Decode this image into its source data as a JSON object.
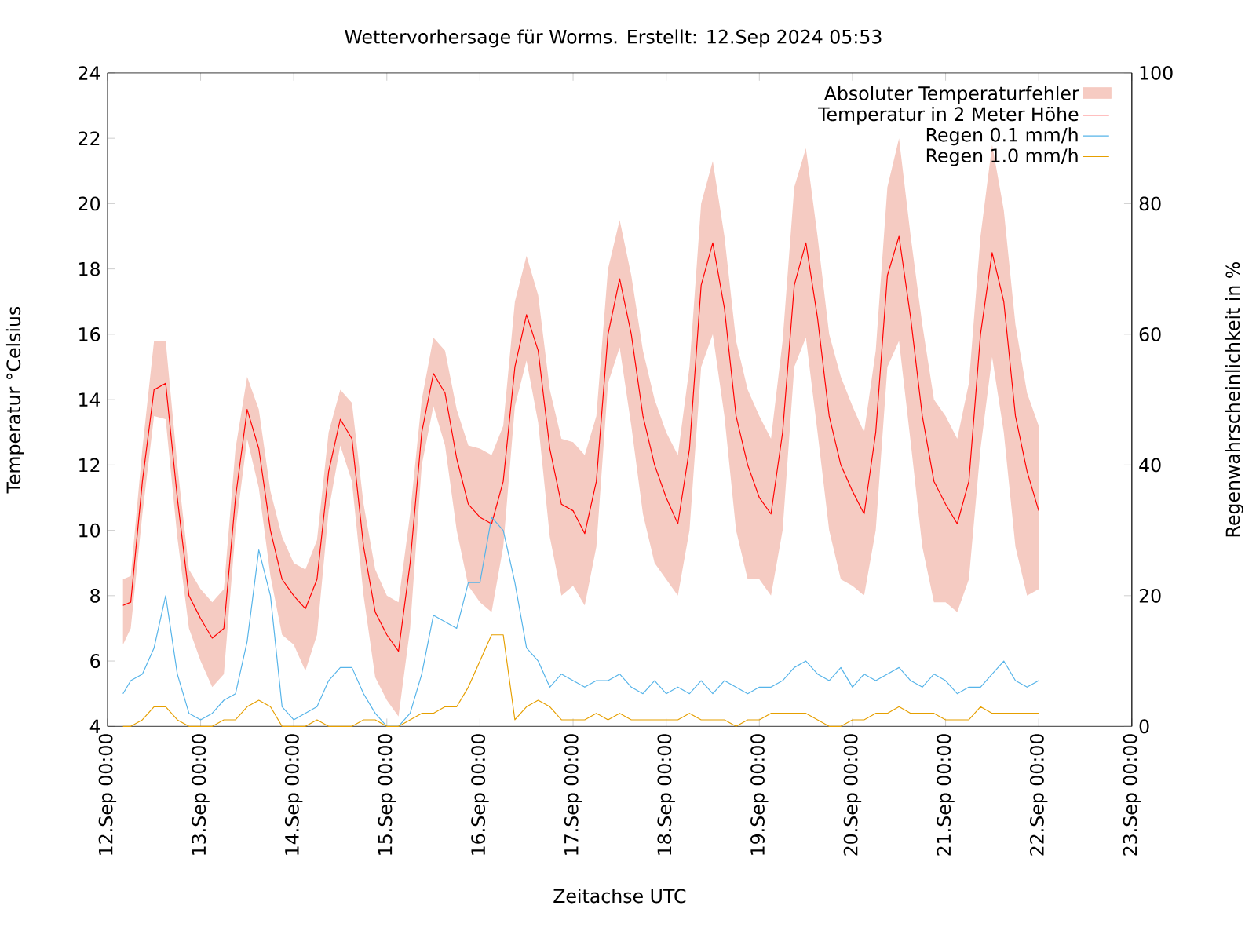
{
  "chart_data": {
    "type": "line",
    "title": "Wettervorhersage für Worms. Erstellt: 12.Sep 2024 05:53",
    "xlabel": "Zeitachse UTC",
    "ylabel": "Temperatur °Celsius",
    "y2label": "Regenwahrscheinlichkeit in %",
    "x": [
      "2024-09-12T04:00",
      "2024-09-12T06:00",
      "2024-09-12T09:00",
      "2024-09-12T12:00",
      "2024-09-12T15:00",
      "2024-09-12T18:00",
      "2024-09-12T21:00",
      "2024-09-13T00:00",
      "2024-09-13T03:00",
      "2024-09-13T06:00",
      "2024-09-13T09:00",
      "2024-09-13T12:00",
      "2024-09-13T15:00",
      "2024-09-13T18:00",
      "2024-09-13T21:00",
      "2024-09-14T00:00",
      "2024-09-14T03:00",
      "2024-09-14T06:00",
      "2024-09-14T09:00",
      "2024-09-14T12:00",
      "2024-09-14T15:00",
      "2024-09-14T18:00",
      "2024-09-14T21:00",
      "2024-09-15T00:00",
      "2024-09-15T03:00",
      "2024-09-15T06:00",
      "2024-09-15T09:00",
      "2024-09-15T12:00",
      "2024-09-15T15:00",
      "2024-09-15T18:00",
      "2024-09-15T21:00",
      "2024-09-16T00:00",
      "2024-09-16T03:00",
      "2024-09-16T06:00",
      "2024-09-16T09:00",
      "2024-09-16T12:00",
      "2024-09-16T15:00",
      "2024-09-16T18:00",
      "2024-09-16T21:00",
      "2024-09-17T00:00",
      "2024-09-17T03:00",
      "2024-09-17T06:00",
      "2024-09-17T09:00",
      "2024-09-17T12:00",
      "2024-09-17T15:00",
      "2024-09-17T18:00",
      "2024-09-17T21:00",
      "2024-09-18T00:00",
      "2024-09-18T03:00",
      "2024-09-18T06:00",
      "2024-09-18T09:00",
      "2024-09-18T12:00",
      "2024-09-18T15:00",
      "2024-09-18T18:00",
      "2024-09-18T21:00",
      "2024-09-19T00:00",
      "2024-09-19T03:00",
      "2024-09-19T06:00",
      "2024-09-19T09:00",
      "2024-09-19T12:00",
      "2024-09-19T15:00",
      "2024-09-19T18:00",
      "2024-09-19T21:00",
      "2024-09-20T00:00",
      "2024-09-20T03:00",
      "2024-09-20T06:00",
      "2024-09-20T09:00",
      "2024-09-20T12:00",
      "2024-09-20T15:00",
      "2024-09-20T18:00",
      "2024-09-20T21:00",
      "2024-09-21T00:00",
      "2024-09-21T03:00",
      "2024-09-21T06:00",
      "2024-09-21T09:00",
      "2024-09-21T12:00",
      "2024-09-21T15:00",
      "2024-09-21T18:00",
      "2024-09-21T21:00",
      "2024-09-22T00:00"
    ],
    "series": [
      {
        "name": "Temperatur in 2 Meter Höhe",
        "color": "#ff0000",
        "lower": [
          6.5,
          7.0,
          10.5,
          13.5,
          13.4,
          9.8,
          7.0,
          6.0,
          5.2,
          5.6,
          10.0,
          12.8,
          11.3,
          8.6,
          6.8,
          6.5,
          5.7,
          6.8,
          10.6,
          12.6,
          11.5,
          8.0,
          5.5,
          4.8,
          4.3,
          7.0,
          12.0,
          13.8,
          12.6,
          10.0,
          8.3,
          7.8,
          7.5,
          9.5,
          13.8,
          15.2,
          13.3,
          9.8,
          8.0,
          8.3,
          7.7,
          9.5,
          14.5,
          15.6,
          13.2,
          10.5,
          9.0,
          8.5,
          8.0,
          10.0,
          15.0,
          16.0,
          13.5,
          10.0,
          8.5,
          8.5,
          8.0,
          10.0,
          15.0,
          15.9,
          13.0,
          10.0,
          8.5,
          8.3,
          8.0,
          10.0,
          15.0,
          15.8,
          12.7,
          9.5,
          7.8,
          7.8,
          7.5,
          8.5,
          12.5,
          15.3,
          13.0,
          9.5,
          8.0,
          8.2
        ],
        "upper": [
          8.5,
          8.6,
          12.5,
          15.8,
          15.8,
          12.0,
          8.8,
          8.2,
          7.8,
          8.2,
          12.5,
          14.7,
          13.7,
          11.2,
          9.8,
          9.0,
          8.8,
          9.7,
          13.0,
          14.3,
          13.9,
          10.8,
          8.8,
          8.0,
          7.8,
          10.5,
          14.0,
          15.9,
          15.5,
          13.7,
          12.6,
          12.5,
          12.3,
          13.2,
          17.0,
          18.4,
          17.2,
          14.3,
          12.8,
          12.7,
          12.3,
          13.5,
          18.0,
          19.5,
          17.8,
          15.5,
          14.0,
          13.0,
          12.3,
          15.0,
          20.0,
          21.3,
          19.0,
          15.8,
          14.3,
          13.5,
          12.8,
          15.8,
          20.5,
          21.7,
          19.0,
          16.0,
          14.7,
          13.8,
          13.0,
          15.5,
          20.5,
          22.0,
          19.0,
          16.3,
          14.0,
          13.5,
          12.8,
          14.5,
          19.0,
          21.8,
          19.8,
          16.3,
          14.2,
          13.2
        ],
        "values": [
          7.7,
          7.8,
          11.5,
          14.3,
          14.5,
          11.0,
          8.0,
          7.3,
          6.7,
          7.0,
          11.0,
          13.7,
          12.5,
          10.0,
          8.5,
          8.0,
          7.6,
          8.5,
          11.8,
          13.4,
          12.8,
          9.5,
          7.5,
          6.8,
          6.3,
          9.0,
          13.0,
          14.8,
          14.2,
          12.2,
          10.8,
          10.4,
          10.2,
          11.5,
          15.0,
          16.6,
          15.5,
          12.5,
          10.8,
          10.6,
          9.9,
          11.5,
          16.0,
          17.7,
          16.0,
          13.5,
          12.0,
          11.0,
          10.2,
          12.5,
          17.5,
          18.8,
          16.8,
          13.5,
          12.0,
          11.0,
          10.5,
          13.0,
          17.5,
          18.8,
          16.5,
          13.5,
          12.0,
          11.2,
          10.5,
          13.0,
          17.8,
          19.0,
          16.5,
          13.5,
          11.5,
          10.8,
          10.2,
          11.5,
          16.0,
          18.5,
          17.0,
          13.5,
          11.8,
          10.6
        ]
      },
      {
        "name": "Regen 0.1 mm/h",
        "axis": "y2",
        "color": "#56b4e9",
        "values": [
          5,
          7,
          8,
          12,
          20,
          8,
          2,
          1,
          2,
          4,
          5,
          13,
          27,
          20,
          3,
          1,
          2,
          3,
          7,
          9,
          9,
          5,
          2,
          0,
          0,
          2,
          8,
          17,
          16,
          15,
          22,
          22,
          32,
          30,
          22,
          12,
          10,
          6,
          8,
          7,
          6,
          7,
          7,
          8,
          6,
          5,
          7,
          5,
          6,
          5,
          7,
          5,
          7,
          6,
          5,
          6,
          6,
          7,
          9,
          10,
          8,
          7,
          9,
          6,
          8,
          7,
          8,
          9,
          7,
          6,
          8,
          7,
          5,
          6,
          6,
          8,
          10,
          7,
          6,
          7
        ]
      },
      {
        "name": "Regen 1.0 mm/h",
        "axis": "y2",
        "color": "#e69f00",
        "values": [
          0,
          0,
          1,
          3,
          3,
          1,
          0,
          0,
          0,
          1,
          1,
          3,
          4,
          3,
          0,
          0,
          0,
          1,
          0,
          0,
          0,
          1,
          1,
          0,
          0,
          1,
          2,
          2,
          3,
          3,
          6,
          10,
          14,
          14,
          1,
          3,
          4,
          3,
          1,
          1,
          1,
          2,
          1,
          2,
          1,
          1,
          1,
          1,
          1,
          2,
          1,
          1,
          1,
          0,
          1,
          1,
          2,
          2,
          2,
          2,
          1,
          0,
          0,
          1,
          1,
          2,
          2,
          3,
          2,
          2,
          2,
          1,
          1,
          1,
          3,
          2,
          2,
          2,
          2,
          2
        ]
      }
    ],
    "xlim": [
      "2024-09-12T00:00",
      "2024-09-23T00:00"
    ],
    "xticks": [
      {
        "value": "2024-09-12T00:00",
        "label": "12.Sep 00:00"
      },
      {
        "value": "2024-09-13T00:00",
        "label": "13.Sep 00:00"
      },
      {
        "value": "2024-09-14T00:00",
        "label": "14.Sep 00:00"
      },
      {
        "value": "2024-09-15T00:00",
        "label": "15.Sep 00:00"
      },
      {
        "value": "2024-09-16T00:00",
        "label": "16.Sep 00:00"
      },
      {
        "value": "2024-09-17T00:00",
        "label": "17.Sep 00:00"
      },
      {
        "value": "2024-09-18T00:00",
        "label": "18.Sep 00:00"
      },
      {
        "value": "2024-09-19T00:00",
        "label": "19.Sep 00:00"
      },
      {
        "value": "2024-09-20T00:00",
        "label": "20.Sep 00:00"
      },
      {
        "value": "2024-09-21T00:00",
        "label": "21.Sep 00:00"
      },
      {
        "value": "2024-09-22T00:00",
        "label": "22.Sep 00:00"
      },
      {
        "value": "2024-09-23T00:00",
        "label": "23.Sep 00:00"
      }
    ],
    "ylim": [
      4,
      24
    ],
    "yticks": [
      4,
      6,
      8,
      10,
      12,
      14,
      16,
      18,
      20,
      22,
      24
    ],
    "y2lim": [
      0,
      100
    ],
    "y2ticks": [
      0,
      20,
      40,
      60,
      80,
      100
    ],
    "annotations": [
      "Absoluter Temperaturfehler"
    ],
    "legend": "top right"
  }
}
